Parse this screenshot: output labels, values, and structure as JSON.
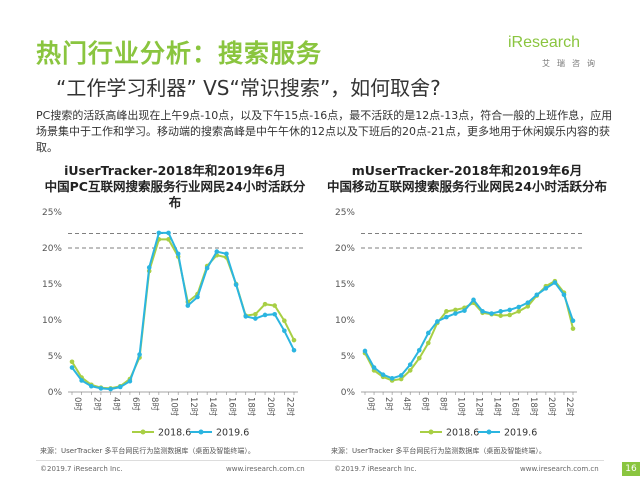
{
  "page": {
    "title": "热门行业分析：搜索服务",
    "subtitle": "“工作学习利器” VS“常识搜索”，如何取舍?",
    "description": "PC搜索的活跃高峰出现在上午9点-10点，以及下午15点-16点，最不活跃的是12点-13点，符合一般的上班作息，应用场景集中于工作和学习。移动端的搜索高峰是中午午休的12点以及下班后的20点-21点，更多地用于休闲娱乐内容的获取。",
    "logo_main": "iResearch",
    "logo_sub": "艾瑞咨询",
    "page_number": "16",
    "colors": {
      "accent": "#8ac53f",
      "series_2018": "#a8cf45",
      "series_2019": "#2bb5e0"
    }
  },
  "footer": {
    "left_copyright": "©2019.7 iResearch Inc.",
    "left_url": "www.iresearch.com.cn",
    "right_copyright": "©2019.7 iResearch Inc.",
    "right_url": "www.iresearch.com.cn"
  },
  "chart_data": [
    {
      "type": "line",
      "title": "iUserTracker-2018年和2019年6月",
      "subtitle": "中国PC互联网搜索服务行业网民24小时活跃分布",
      "x": [
        "0时",
        "1时",
        "2时",
        "3时",
        "4时",
        "5时",
        "6时",
        "7时",
        "8时",
        "9时",
        "10时",
        "11时",
        "12时",
        "13时",
        "14时",
        "15时",
        "16时",
        "17时",
        "18时",
        "19时",
        "20时",
        "21时",
        "22时",
        "23时"
      ],
      "x_tick_labels": [
        "0时",
        "2时",
        "4时",
        "6时",
        "8时",
        "10时",
        "12时",
        "14时",
        "16时",
        "18时",
        "20时",
        "22时"
      ],
      "y_tick_labels": [
        "0%",
        "5%",
        "10%",
        "15%",
        "20%",
        "25%"
      ],
      "ylim": [
        0,
        25
      ],
      "y_unit": "%",
      "series": [
        {
          "name": "2018.6",
          "color": "#a8cf45",
          "values": [
            4.2,
            2.0,
            1.0,
            0.6,
            0.5,
            0.8,
            1.8,
            4.8,
            16.8,
            21.2,
            21.2,
            18.8,
            12.5,
            13.6,
            17.5,
            19.0,
            18.7,
            15.0,
            10.6,
            10.8,
            12.2,
            12.0,
            9.9,
            7.2
          ]
        },
        {
          "name": "2019.6",
          "color": "#2bb5e0",
          "values": [
            3.4,
            1.6,
            0.8,
            0.5,
            0.4,
            0.7,
            1.5,
            5.2,
            17.3,
            22.1,
            22.1,
            19.2,
            12.0,
            13.2,
            17.2,
            19.5,
            19.2,
            14.9,
            10.5,
            10.2,
            10.7,
            10.8,
            8.5,
            5.8
          ]
        }
      ],
      "reference_lines": [
        22,
        20
      ],
      "legend_position": "bottom",
      "source": "来源：UserTracker 多平台网民行为监测数据库（桌面及智能终端）。"
    },
    {
      "type": "line",
      "title": "mUserTracker-2018年和2019年6月",
      "subtitle": "中国移动互联网搜索服务行业网民24小时活跃分布",
      "x": [
        "0时",
        "1时",
        "2时",
        "3时",
        "4时",
        "5时",
        "6时",
        "7时",
        "8时",
        "9时",
        "10时",
        "11时",
        "12时",
        "13时",
        "14时",
        "15时",
        "16时",
        "17时",
        "18时",
        "19时",
        "20时",
        "21时",
        "22时",
        "23时"
      ],
      "x_tick_labels": [
        "0时",
        "2时",
        "4时",
        "6时",
        "8时",
        "10时",
        "12时",
        "14时",
        "16时",
        "18时",
        "20时",
        "22时"
      ],
      "y_tick_labels": [
        "0%",
        "5%",
        "10%",
        "15%",
        "20%",
        "25%"
      ],
      "ylim": [
        0,
        25
      ],
      "y_unit": "%",
      "series": [
        {
          "name": "2018.6",
          "color": "#a8cf45",
          "values": [
            5.4,
            3.0,
            2.1,
            1.6,
            1.8,
            3.0,
            4.7,
            6.8,
            9.6,
            11.2,
            11.4,
            11.7,
            12.4,
            11.0,
            10.8,
            10.6,
            10.7,
            11.2,
            11.9,
            13.4,
            14.7,
            15.4,
            13.8,
            8.8
          ]
        },
        {
          "name": "2019.6",
          "color": "#2bb5e0",
          "values": [
            5.7,
            3.4,
            2.4,
            1.9,
            2.3,
            3.8,
            5.8,
            8.2,
            9.8,
            10.4,
            10.9,
            11.3,
            12.8,
            11.2,
            10.9,
            11.2,
            11.4,
            11.8,
            12.4,
            13.5,
            14.4,
            15.2,
            13.5,
            9.9
          ]
        }
      ],
      "reference_lines": [
        22,
        20
      ],
      "legend_position": "bottom",
      "source": "来源：UserTracker 多平台网民行为监测数据库（桌面及智能终端）。"
    }
  ]
}
